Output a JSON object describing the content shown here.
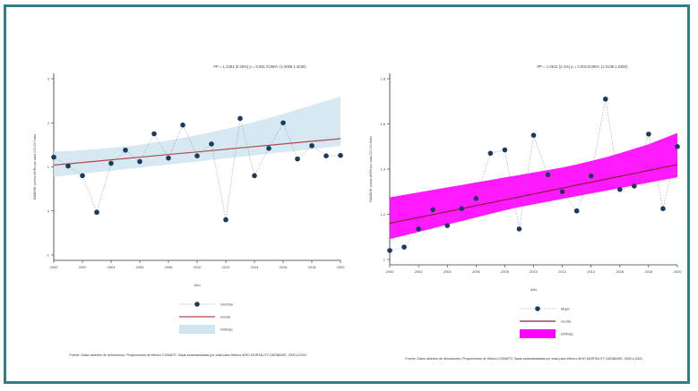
{
  "chart_data": [
    {
      "type": "line",
      "stats": "PP = 1.2254 (0.26%)   p = 0.551   IC95%: (1.0059   1.4030)",
      "ylabel": "RAMEGE: puesto AIVRs por cada 100,000 Habs",
      "xlabel": "Año",
      "xlim": [
        2000,
        2020
      ],
      "ylim": [
        -1,
        3
      ],
      "y_ticks": [
        -1,
        0,
        1,
        2,
        3
      ],
      "x_ticks": [
        "2000",
        "2002",
        "2004",
        "2006",
        "2008",
        "2010",
        "2012",
        "2014",
        "2016",
        "2018",
        "2020"
      ],
      "x": [
        2000,
        2001,
        2002,
        2003,
        2004,
        2005,
        2006,
        2007,
        2008,
        2009,
        2010,
        2011,
        2012,
        2013,
        2014,
        2015,
        2016,
        2017,
        2018,
        2019,
        2020
      ],
      "observed": [
        1.22,
        1.02,
        0.8,
        -0.03,
        1.08,
        1.38,
        1.12,
        1.75,
        1.2,
        1.95,
        1.25,
        1.52,
        -0.2,
        2.1,
        0.8,
        1.42,
        2.0,
        1.18,
        1.48,
        1.25,
        1.26
      ],
      "fit": [
        1.04,
        1.07,
        1.1,
        1.13,
        1.16,
        1.19,
        1.22,
        1.25,
        1.28,
        1.31,
        1.34,
        1.37,
        1.4,
        1.43,
        1.46,
        1.49,
        1.52,
        1.55,
        1.58,
        1.61,
        1.64
      ],
      "ci_lower": [
        0.77,
        0.81,
        0.84,
        0.88,
        0.91,
        0.95,
        0.98,
        1.02,
        1.05,
        1.09,
        1.12,
        1.16,
        1.19,
        1.23,
        1.26,
        1.3,
        1.33,
        1.37,
        1.4,
        1.44,
        1.47
      ],
      "ci_upper": [
        1.35,
        1.36,
        1.38,
        1.4,
        1.43,
        1.46,
        1.5,
        1.55,
        1.6,
        1.66,
        1.72,
        1.79,
        1.86,
        1.94,
        2.02,
        2.11,
        2.2,
        2.3,
        2.4,
        2.5,
        2.6
      ],
      "colors": {
        "point": "#1b3a5c",
        "line": "#b04a4a",
        "band": "#cfe4ef",
        "dash": "#888888"
      },
      "legend": [
        {
          "label": "Hombre",
          "kind": "point"
        },
        {
          "label": "media",
          "kind": "line"
        },
        {
          "label": "IntRasp",
          "kind": "band"
        }
      ],
      "source": "Fuente: Datos abiertos de defunciones, Proyecciones de México CONAPO, Tasas estandarizadas por edad para México WHO MORTALITY DATABASE, 2000 a 2020."
    },
    {
      "type": "line",
      "stats": "PP = 1.0912 (2.4%)   p = 0.003   IC95%: (1.0136   1.0350)",
      "ylabel": "RAMEGE: puesto AIVRs por cada 100,000 Habs",
      "xlabel": "Año",
      "xlim": [
        2000,
        2020
      ],
      "ylim": [
        1,
        1.8
      ],
      "y_ticks": [
        1,
        1.2,
        1.4,
        1.6,
        1.8
      ],
      "x_ticks": [
        "2000",
        "2002",
        "2004",
        "2006",
        "2008",
        "2010",
        "2012",
        "2014",
        "2016",
        "2018",
        "2020"
      ],
      "x": [
        2000,
        2001,
        2002,
        2003,
        2004,
        2005,
        2006,
        2007,
        2008,
        2009,
        2010,
        2011,
        2012,
        2013,
        2014,
        2015,
        2016,
        2017,
        2018,
        2019,
        2020
      ],
      "observed": [
        1.04,
        1.055,
        1.135,
        1.22,
        1.15,
        1.225,
        1.27,
        1.47,
        1.485,
        1.135,
        1.55,
        1.375,
        1.3,
        1.215,
        1.37,
        1.71,
        1.31,
        1.325,
        1.555,
        1.225,
        1.5
      ],
      "fit": [
        1.16,
        1.173,
        1.186,
        1.199,
        1.212,
        1.225,
        1.238,
        1.251,
        1.264,
        1.277,
        1.29,
        1.303,
        1.316,
        1.329,
        1.342,
        1.355,
        1.368,
        1.381,
        1.394,
        1.407,
        1.42
      ],
      "ci_lower": [
        1.09,
        1.106,
        1.122,
        1.138,
        1.154,
        1.17,
        1.186,
        1.202,
        1.218,
        1.232,
        1.244,
        1.256,
        1.268,
        1.28,
        1.292,
        1.304,
        1.316,
        1.328,
        1.34,
        1.352,
        1.364
      ],
      "ci_upper": [
        1.275,
        1.286,
        1.297,
        1.308,
        1.319,
        1.33,
        1.341,
        1.352,
        1.363,
        1.374,
        1.385,
        1.396,
        1.407,
        1.421,
        1.436,
        1.452,
        1.47,
        1.49,
        1.51,
        1.535,
        1.56
      ],
      "colors": {
        "point": "#1b3a5c",
        "line": "#8a1a4a",
        "band": "#ff00ff",
        "dash": "#888888"
      },
      "legend": [
        {
          "label": "Mujer",
          "kind": "point"
        },
        {
          "label": "media",
          "kind": "line"
        },
        {
          "label": "IntRasp",
          "kind": "band"
        }
      ],
      "source": "Fuente: Datos abiertos de defunciones, Proyecciones de México CONAPO, Tasas estandarizadas por edad para México WHO MORTALITY DATABASE, 2000 a 2020."
    }
  ]
}
